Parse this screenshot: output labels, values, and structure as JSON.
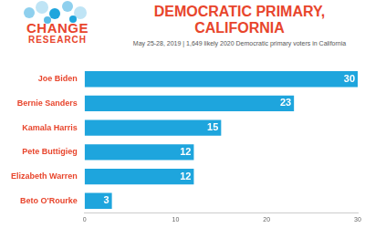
{
  "chart_data": {
    "type": "bar",
    "orientation": "horizontal",
    "title": "DEMOCRATIC PRIMARY, CALIFORNIA",
    "subtitle": "May 25-28, 2019 | 1,649 likely 2020 Democratic primary voters in California",
    "annotations": [
      "CHANGE",
      "RESEARCH"
    ],
    "categories": [
      "Joe Biden",
      "Bernie Sanders",
      "Kamala Harris",
      "Pete Buttigieg",
      "Elizabeth Warren",
      "Beto O'Rourke"
    ],
    "values": [
      30,
      23,
      15,
      12,
      12,
      3
    ],
    "color": "#1ea5dd",
    "xlim": [
      0,
      30
    ],
    "xticks": [
      0,
      10,
      20,
      30
    ],
    "grid": false,
    "data_labels": true
  }
}
